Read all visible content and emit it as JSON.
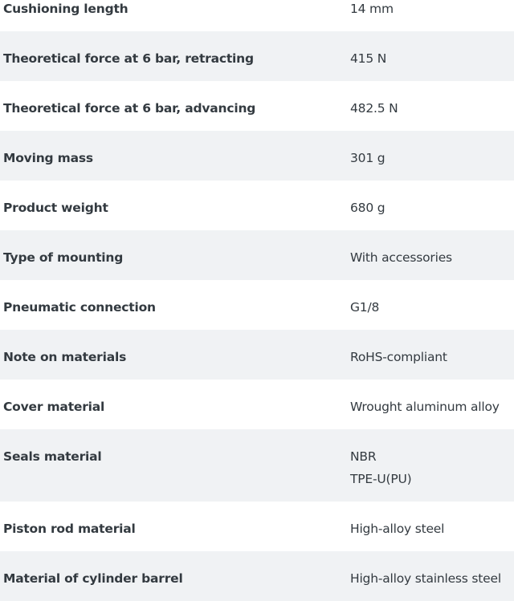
{
  "rows": [
    {
      "label": "Cushioning length",
      "values": [
        "14 mm"
      ]
    },
    {
      "label": "Theoretical force at 6 bar, retracting",
      "values": [
        "415 N"
      ]
    },
    {
      "label": "Theoretical force at 6 bar, advancing",
      "values": [
        "482.5 N"
      ]
    },
    {
      "label": "Moving mass",
      "values": [
        "301 g"
      ]
    },
    {
      "label": "Product weight",
      "values": [
        "680 g"
      ]
    },
    {
      "label": "Type of mounting",
      "values": [
        "With accessories"
      ]
    },
    {
      "label": "Pneumatic connection",
      "values": [
        "G1/8"
      ]
    },
    {
      "label": "Note on materials",
      "values": [
        "RoHS-compliant"
      ]
    },
    {
      "label": "Cover material",
      "values": [
        "Wrought aluminum alloy"
      ]
    },
    {
      "label": "Seals material",
      "values": [
        "NBR",
        "TPE-U(PU)"
      ]
    },
    {
      "label": "Piston rod material",
      "values": [
        "High-alloy steel"
      ]
    },
    {
      "label": "Material of cylinder barrel",
      "values": [
        "High-alloy stainless steel"
      ]
    }
  ],
  "colors": {
    "stripe": "#f0f2f4",
    "text": "#333a40"
  }
}
